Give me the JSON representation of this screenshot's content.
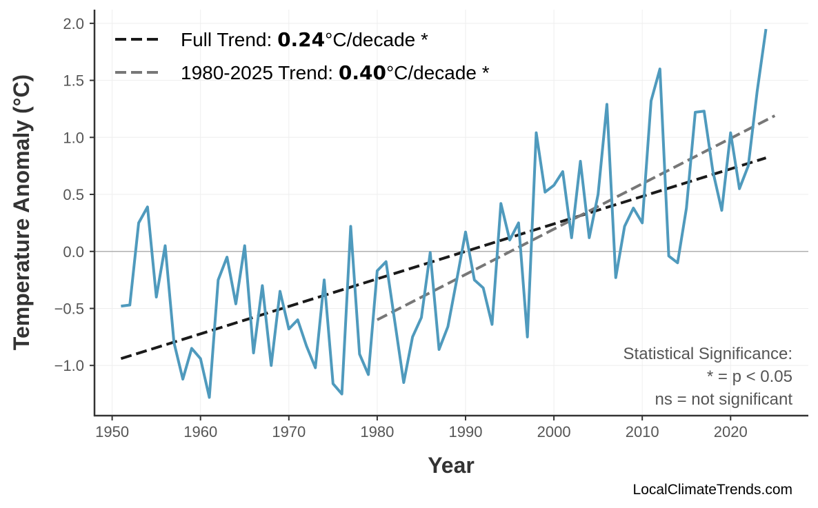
{
  "chart_data": {
    "type": "line",
    "xlabel": "Year",
    "ylabel": "Temperature Anomaly (°C)",
    "xlim": [
      1948,
      2028.8
    ],
    "ylim": [
      -1.44,
      2.12
    ],
    "xticks": [
      1950,
      1960,
      1970,
      1980,
      1990,
      2000,
      2010,
      2020
    ],
    "yticks": [
      -1.0,
      -0.5,
      0.0,
      0.5,
      1.0,
      1.5,
      2.0
    ],
    "ytick_labels": [
      "−1.0",
      "−0.5",
      "0.0",
      "0.5",
      "1.0",
      "1.5",
      "2.0"
    ],
    "grid": true,
    "zero_line": true,
    "series": [
      {
        "color": "#4f9abd",
        "x": [
          1951,
          1952,
          1953,
          1954,
          1955,
          1956,
          1957,
          1958,
          1959,
          1960,
          1961,
          1962,
          1963,
          1964,
          1965,
          1966,
          1967,
          1968,
          1969,
          1970,
          1971,
          1972,
          1973,
          1974,
          1975,
          1976,
          1977,
          1978,
          1979,
          1980,
          1981,
          1982,
          1983,
          1984,
          1985,
          1986,
          1987,
          1988,
          1989,
          1990,
          1991,
          1992,
          1993,
          1994,
          1995,
          1996,
          1997,
          1998,
          1999,
          2000,
          2001,
          2002,
          2003,
          2004,
          2005,
          2006,
          2007,
          2008,
          2009,
          2010,
          2011,
          2012,
          2013,
          2014,
          2015,
          2016,
          2017,
          2018,
          2019,
          2020,
          2021,
          2022,
          2023,
          2024
        ],
        "y": [
          -0.48,
          -0.47,
          0.25,
          0.39,
          -0.4,
          0.05,
          -0.8,
          -1.12,
          -0.85,
          -0.94,
          -1.28,
          -0.25,
          -0.05,
          -0.46,
          0.05,
          -0.89,
          -0.3,
          -1.0,
          -0.35,
          -0.68,
          -0.6,
          -0.83,
          -1.02,
          -0.25,
          -1.16,
          -1.25,
          0.22,
          -0.9,
          -1.08,
          -0.17,
          -0.09,
          -0.62,
          -1.15,
          -0.75,
          -0.58,
          -0.01,
          -0.86,
          -0.66,
          -0.25,
          0.17,
          -0.25,
          -0.32,
          -0.64,
          0.42,
          0.1,
          0.25,
          -0.75,
          1.04,
          0.52,
          0.58,
          0.7,
          0.12,
          0.79,
          0.12,
          0.5,
          1.29,
          -0.23,
          0.22,
          0.38,
          0.25,
          1.32,
          1.6,
          -0.04,
          -0.1,
          0.38,
          1.22,
          1.23,
          0.7,
          0.36,
          1.04,
          0.55,
          0.75,
          1.4,
          1.95
        ]
      }
    ],
    "trends": [
      {
        "prefix": "Full Trend: ",
        "value": "0.24",
        "suffix": "°C/decade *",
        "color": "#1a1a1a",
        "x": [
          1951,
          2024
        ],
        "y": [
          -0.94,
          0.82
        ]
      },
      {
        "prefix": "1980-2025 Trend: ",
        "value": "0.40",
        "suffix": "°C/decade *",
        "color": "#777777",
        "x": [
          1980,
          2025
        ],
        "y": [
          -0.6,
          1.19
        ]
      }
    ],
    "legend_position": "top-left",
    "annotation": [
      "Statistical Significance:",
      "* = p < 0.05",
      "ns = not significant"
    ],
    "credit": "LocalClimateTrends.com"
  }
}
